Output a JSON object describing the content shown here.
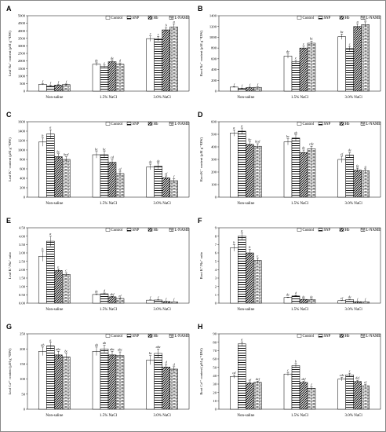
{
  "figure": {
    "panels": [
      "A",
      "B",
      "C",
      "D",
      "E",
      "F",
      "G",
      "H"
    ]
  },
  "legend": {
    "items": [
      "Control",
      "SNP",
      "Hb",
      "L-NAME"
    ],
    "patterns": [
      "white",
      "hlines",
      "diag",
      "brick"
    ]
  },
  "categories": [
    "Non-saline",
    "1.5% NaCl",
    "3.0% NaCl"
  ],
  "chart_data": [
    {
      "type": "bar",
      "panel": "A",
      "ylabel": "Leaf Na⁺ content (μM g⁻¹DW)",
      "ylim": [
        0,
        5000
      ],
      "yticks": [
        "0",
        "500",
        "1000",
        "1500",
        "2000",
        "2500",
        "3000",
        "3500",
        "4000",
        "4500",
        "5000"
      ],
      "categories": [
        "Non-saline",
        "1.5% NaCl",
        "3.0% NaCl"
      ],
      "series": [
        {
          "name": "Control",
          "values": [
            450,
            1780,
            3480
          ],
          "errors": [
            40,
            100,
            180
          ],
          "letters": [
            "f",
            "de",
            "c"
          ]
        },
        {
          "name": "SNP",
          "values": [
            350,
            1650,
            3480
          ],
          "errors": [
            40,
            80,
            150
          ],
          "letters": [
            "f",
            "e",
            "c"
          ]
        },
        {
          "name": "Hb",
          "values": [
            400,
            1950,
            4060
          ],
          "errors": [
            40,
            90,
            150
          ],
          "letters": [
            "f",
            "de",
            "b"
          ]
        },
        {
          "name": "L-NAME",
          "values": [
            430,
            1780,
            4260
          ],
          "errors": [
            40,
            90,
            200
          ],
          "letters": [
            "f",
            "d",
            "a"
          ]
        }
      ]
    },
    {
      "type": "bar",
      "panel": "B",
      "ylabel": "Root Na⁺ content (μM g⁻¹DW)",
      "ylim": [
        0,
        1400
      ],
      "yticks": [
        "0",
        "200",
        "400",
        "600",
        "800",
        "1000",
        "1200",
        "1400"
      ],
      "categories": [
        "Non-saline",
        "1.5% NaCl",
        "3.0% NaCl"
      ],
      "series": [
        {
          "name": "Control",
          "values": [
            75,
            650,
            1010
          ],
          "errors": [
            8,
            40,
            50
          ],
          "letters": [
            "f",
            "de",
            "bc"
          ]
        },
        {
          "name": "SNP",
          "values": [
            50,
            545,
            790
          ],
          "errors": [
            6,
            30,
            40
          ],
          "letters": [
            "f",
            "e",
            "c"
          ]
        },
        {
          "name": "Hb",
          "values": [
            65,
            800,
            1200
          ],
          "errors": [
            8,
            40,
            50
          ],
          "letters": [
            "f",
            "c",
            "a"
          ]
        },
        {
          "name": "L-NAME",
          "values": [
            70,
            890,
            1235
          ],
          "errors": [
            8,
            40,
            50
          ],
          "letters": [
            "f",
            "bc",
            "a"
          ]
        }
      ]
    },
    {
      "type": "bar",
      "panel": "C",
      "ylabel": "Leaf K⁺ content (μM g⁻¹DW)",
      "ylim": [
        0,
        1600
      ],
      "yticks": [
        "0",
        "200",
        "400",
        "600",
        "800",
        "1000",
        "1200",
        "1400",
        "1600"
      ],
      "categories": [
        "Non-saline",
        "1.5% NaCl",
        "3.0% NaCl"
      ],
      "series": [
        {
          "name": "Control",
          "values": [
            1170,
            900,
            640
          ],
          "errors": [
            90,
            70,
            60
          ],
          "letters": [
            "b",
            "bc",
            "de"
          ]
        },
        {
          "name": "SNP",
          "values": [
            1340,
            900,
            660
          ],
          "errors": [
            90,
            70,
            60
          ],
          "letters": [
            "a",
            "bc",
            "de"
          ]
        },
        {
          "name": "Hb",
          "values": [
            860,
            740,
            410
          ],
          "errors": [
            60,
            60,
            40
          ],
          "letters": [
            "bc",
            "cd",
            "ef"
          ]
        },
        {
          "name": "L-NAME",
          "values": [
            800,
            500,
            350
          ],
          "errors": [
            60,
            50,
            40
          ],
          "letters": [
            "bcd",
            "ef",
            "f"
          ]
        }
      ]
    },
    {
      "type": "bar",
      "panel": "D",
      "ylabel": "Root K⁺ content (μM g⁻¹DW)",
      "ylim": [
        0,
        600
      ],
      "yticks": [
        "0",
        "100",
        "200",
        "300",
        "400",
        "500",
        "600"
      ],
      "categories": [
        "Non-saline",
        "1.5% NaCl",
        "3.0% NaCl"
      ],
      "series": [
        {
          "name": "Control",
          "values": [
            510,
            440,
            300
          ],
          "errors": [
            25,
            25,
            25
          ],
          "letters": [
            "a",
            "bc",
            "ef"
          ]
        },
        {
          "name": "SNP",
          "values": [
            525,
            470,
            335
          ],
          "errors": [
            25,
            25,
            20
          ],
          "letters": [
            "a",
            "ab",
            "de"
          ]
        },
        {
          "name": "Hb",
          "values": [
            420,
            355,
            215
          ],
          "errors": [
            20,
            20,
            15
          ],
          "letters": [
            "bc",
            "de",
            "fg"
          ]
        },
        {
          "name": "L-NAME",
          "values": [
            405,
            385,
            210
          ],
          "errors": [
            20,
            20,
            15
          ],
          "letters": [
            "bcd",
            "cde",
            "g"
          ]
        }
      ]
    },
    {
      "type": "bar",
      "panel": "E",
      "ylabel": "Leaf K⁺/Na⁺ ratio",
      "ylim": [
        0,
        4.5
      ],
      "yticks": [
        "0.00",
        "0.50",
        "1.00",
        "1.50",
        "2.00",
        "2.50",
        "3.00",
        "3.50",
        "4.00",
        "4.50"
      ],
      "categories": [
        "Non-saline",
        "1.5% NaCl",
        "3.0% NaCl"
      ],
      "series": [
        {
          "name": "Control",
          "values": [
            2.8,
            0.52,
            0.18
          ],
          "errors": [
            0.3,
            0.04,
            0.02
          ],
          "letters": [
            "b",
            "de",
            "f"
          ]
        },
        {
          "name": "SNP",
          "values": [
            3.7,
            0.56,
            0.19
          ],
          "errors": [
            0.3,
            0.05,
            0.02
          ],
          "letters": [
            "a",
            "d",
            "f"
          ]
        },
        {
          "name": "Hb",
          "values": [
            1.95,
            0.38,
            0.1
          ],
          "errors": [
            0.1,
            0.03,
            0.01
          ],
          "letters": [
            "c",
            "def",
            "f"
          ]
        },
        {
          "name": "L-NAME",
          "values": [
            1.72,
            0.28,
            0.08
          ],
          "errors": [
            0.1,
            0.03,
            0.01
          ],
          "letters": [
            "c",
            "ef",
            "f"
          ]
        }
      ]
    },
    {
      "type": "bar",
      "panel": "F",
      "ylabel": "Root K⁺/Na⁺ ratio",
      "ylim": [
        0,
        9
      ],
      "yticks": [
        "0",
        "1",
        "2",
        "3",
        "4",
        "5",
        "6",
        "7",
        "8",
        "9"
      ],
      "categories": [
        "Non-saline",
        "1.5% NaCl",
        "3.0% NaCl"
      ],
      "series": [
        {
          "name": "Control",
          "values": [
            6.6,
            0.68,
            0.3
          ],
          "errors": [
            0.4,
            0.05,
            0.03
          ],
          "letters": [
            "b",
            "de",
            "ef"
          ]
        },
        {
          "name": "SNP",
          "values": [
            8.0,
            0.86,
            0.42
          ],
          "errors": [
            0.4,
            0.06,
            0.03
          ],
          "letters": [
            "a",
            "d",
            "de"
          ]
        },
        {
          "name": "Hb",
          "values": [
            6.0,
            0.45,
            0.18
          ],
          "errors": [
            0.4,
            0.04,
            0.02
          ],
          "letters": [
            "b",
            "de",
            "f"
          ]
        },
        {
          "name": "L-NAME",
          "values": [
            5.1,
            0.43,
            0.17
          ],
          "errors": [
            0.3,
            0.04,
            0.02
          ],
          "letters": [
            "c",
            "de",
            "f"
          ]
        }
      ]
    },
    {
      "type": "bar",
      "panel": "G",
      "ylabel": "Leaf Ca²⁺ content (μM g⁻¹DW)",
      "ylim": [
        0,
        250
      ],
      "yticks": [
        "0",
        "50",
        "100",
        "150",
        "200",
        "250"
      ],
      "categories": [
        "Non-saline",
        "1.5% NaCl",
        "3.0% NaCl"
      ],
      "series": [
        {
          "name": "Control",
          "values": [
            192,
            192,
            163
          ],
          "errors": [
            14,
            14,
            15
          ],
          "letters": [
            "ab",
            "ab",
            "bc"
          ]
        },
        {
          "name": "SNP",
          "values": [
            210,
            200,
            185
          ],
          "errors": [
            12,
            12,
            14
          ],
          "letters": [
            "a",
            "ab",
            "abc"
          ]
        },
        {
          "name": "Hb",
          "values": [
            180,
            180,
            140
          ],
          "errors": [
            12,
            12,
            8
          ],
          "letters": [
            "abc",
            "abc",
            "d"
          ]
        },
        {
          "name": "L-NAME",
          "values": [
            173,
            178,
            133
          ],
          "errors": [
            12,
            12,
            8
          ],
          "letters": [
            "bc",
            "abc",
            "d"
          ]
        }
      ]
    },
    {
      "type": "bar",
      "panel": "H",
      "ylabel": "Root Ca²⁺ content (μM g⁻¹DW)",
      "ylim": [
        0,
        90
      ],
      "yticks": [
        "0",
        "10",
        "20",
        "30",
        "40",
        "50",
        "60",
        "70",
        "80",
        "90"
      ],
      "categories": [
        "Non-saline",
        "1.5% NaCl",
        "3.0% NaCl"
      ],
      "series": [
        {
          "name": "Control",
          "values": [
            39,
            42,
            36
          ],
          "errors": [
            2,
            2,
            2
          ],
          "letters": [
            "cd",
            "c",
            "cde"
          ]
        },
        {
          "name": "SNP",
          "values": [
            78,
            52,
            41
          ],
          "errors": [
            2.5,
            2.5,
            2
          ],
          "letters": [
            "a",
            "b",
            "c"
          ]
        },
        {
          "name": "Hb",
          "values": [
            31,
            32,
            33
          ],
          "errors": [
            1.5,
            1.5,
            1.5
          ],
          "letters": [
            "ef",
            "def",
            "def"
          ]
        },
        {
          "name": "L-NAME",
          "values": [
            32,
            25,
            28
          ],
          "errors": [
            1.5,
            1.5,
            1.5
          ],
          "letters": [
            "def",
            "f",
            "ef"
          ]
        }
      ]
    }
  ]
}
